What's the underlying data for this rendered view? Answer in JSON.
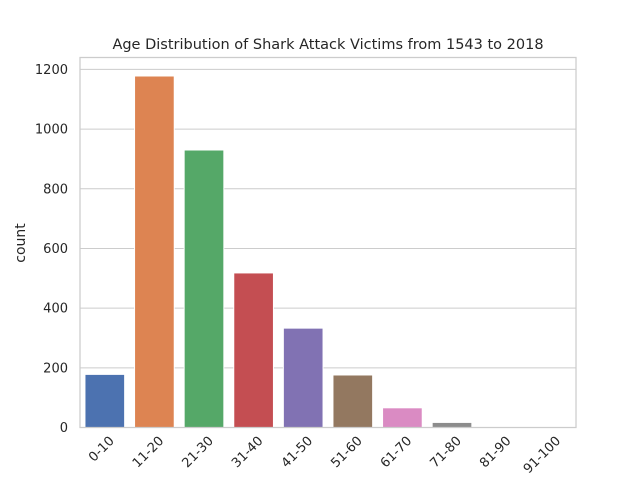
{
  "chart_data": {
    "type": "bar",
    "title": "Age Distribution of Shark Attack Victims from 1543 to 2018",
    "xlabel": "",
    "ylabel": "count",
    "categories": [
      "0-10",
      "11-20",
      "21-30",
      "31-40",
      "41-50",
      "51-60",
      "61-70",
      "71-80",
      "81-90",
      "91-100"
    ],
    "values": [
      178,
      1178,
      930,
      518,
      333,
      176,
      66,
      17,
      2,
      1
    ],
    "ylim": [
      0,
      1240
    ],
    "yticks": [
      "0",
      "200",
      "400",
      "600",
      "800",
      "1000",
      "1200"
    ],
    "grid": "horizontal",
    "colors": [
      "#4c72b0",
      "#dd8452",
      "#55a868",
      "#c44e52",
      "#8172b3",
      "#937860",
      "#da8bc3",
      "#8c8c8c",
      "#ccb974",
      "#64b5cd"
    ]
  }
}
